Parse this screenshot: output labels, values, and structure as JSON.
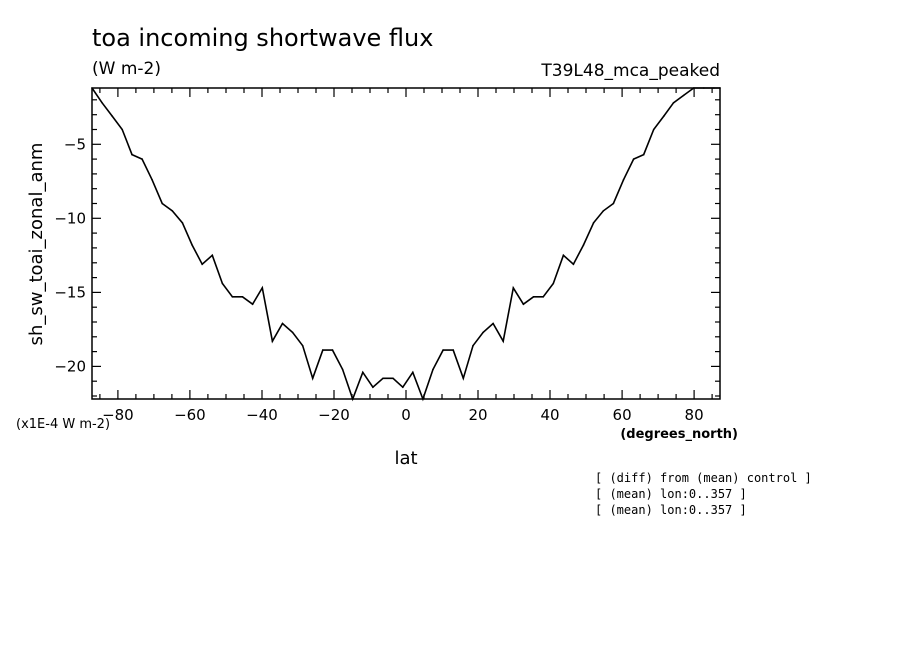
{
  "chart_data": {
    "type": "line",
    "title": "toa incoming shortwave flux",
    "subtitle": "(W m-2)",
    "run_label": "T39L48_mca_peaked",
    "xlabel": "lat",
    "xunits": "(degrees_north)",
    "ylabel": "sh_sw_toai_zonal_anm",
    "yunits": "(x1E-4 W m-2)",
    "xlim": [
      -87.2,
      87.2
    ],
    "ylim": [
      -22.2,
      -1.2
    ],
    "x_ticks": [
      -80,
      -60,
      -40,
      -20,
      0,
      20,
      40,
      60,
      80
    ],
    "y_ticks": [
      -5,
      -10,
      -15,
      -20
    ],
    "grid": false,
    "notes": [
      "[ (diff) from (mean) control ]",
      "[ (mean) lon:0..357 ]",
      "[ (mean) lon:0..357 ]"
    ],
    "series": [
      {
        "x": [
          -87.2,
          -84.4,
          -81.6,
          -78.8,
          -76.1,
          -73.3,
          -70.5,
          -67.7,
          -64.9,
          -62.1,
          -59.4,
          -56.6,
          -53.8,
          -51.0,
          -48.2,
          -45.4,
          -42.6,
          -39.9,
          -37.1,
          -34.3,
          -31.5,
          -28.7,
          -25.9,
          -23.1,
          -20.4,
          -17.6,
          -14.8,
          -12.0,
          -9.2,
          -6.4,
          -3.6,
          -0.9,
          1.9,
          4.7,
          7.5,
          10.3,
          13.1,
          15.9,
          18.6,
          21.4,
          24.2,
          27.0,
          29.8,
          32.6,
          35.4,
          38.1,
          40.9,
          43.7,
          46.5,
          49.3,
          52.1,
          54.8,
          57.6,
          60.4,
          63.2,
          66.0,
          68.8,
          71.6,
          74.3,
          77.1,
          79.9,
          82.7,
          85.5,
          87.2
        ],
        "y": [
          -1.2,
          -2.2,
          -3.1,
          -4.0,
          -5.7,
          -6.0,
          -7.4,
          -9.0,
          -9.5,
          -10.3,
          -11.8,
          -13.1,
          -12.5,
          -14.4,
          -15.3,
          -15.3,
          -15.8,
          -14.7,
          -18.3,
          -17.1,
          -17.7,
          -18.6,
          -20.8,
          -18.9,
          -18.9,
          -20.2,
          -22.2,
          -20.4,
          -21.4,
          -20.8,
          -20.8,
          -21.4,
          -20.4,
          -22.2,
          -20.2,
          -18.9,
          -18.9,
          -20.8,
          -18.6,
          -17.7,
          -17.1,
          -18.3,
          -14.7,
          -15.8,
          -15.3,
          -15.3,
          -14.4,
          -12.5,
          -13.1,
          -11.8,
          -10.3,
          -9.5,
          -9.0,
          -7.4,
          -6.0,
          -5.7,
          -4.0,
          -3.1,
          -2.2,
          -1.7,
          -1.2,
          -1.2,
          -1.2,
          -1.2
        ]
      }
    ]
  }
}
